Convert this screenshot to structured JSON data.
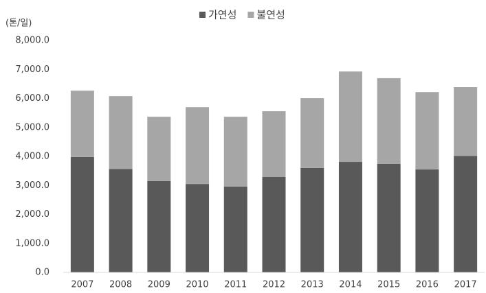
{
  "chart_data": {
    "type": "stacked_bar",
    "unit_label": "(톤/일)",
    "categories": [
      "2007",
      "2008",
      "2009",
      "2010",
      "2011",
      "2012",
      "2013",
      "2014",
      "2015",
      "2016",
      "2017"
    ],
    "series": [
      {
        "name": "가연성",
        "color": "#595959",
        "values": [
          3980,
          3570,
          3150,
          3050,
          2960,
          3290,
          3600,
          3810,
          3740,
          3550,
          4020
        ]
      },
      {
        "name": "불연성",
        "color": "#a6a6a6",
        "values": [
          2290,
          2510,
          2220,
          2650,
          2410,
          2270,
          2410,
          3120,
          2960,
          2670,
          2370
        ]
      }
    ],
    "ylim": [
      0,
      8000
    ],
    "yticks": [
      {
        "value": 0,
        "label": "0.0"
      },
      {
        "value": 1000,
        "label": "1,000.0"
      },
      {
        "value": 2000,
        "label": "2,000.0"
      },
      {
        "value": 3000,
        "label": "3,000.0"
      },
      {
        "value": 4000,
        "label": "4,000.0"
      },
      {
        "value": 5000,
        "label": "5,000.0"
      },
      {
        "value": 6000,
        "label": "6,000.0"
      },
      {
        "value": 7000,
        "label": "7,000.0"
      },
      {
        "value": 8000,
        "label": "8,000.0"
      }
    ],
    "grid": false,
    "legend": "top"
  }
}
